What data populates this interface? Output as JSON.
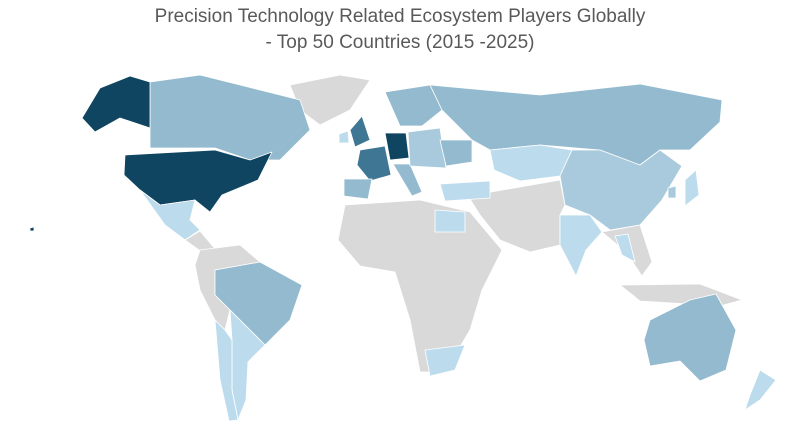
{
  "title": {
    "line1": "Precision Technology Related Ecosystem Players Globally",
    "line2": "- Top 50 Countries (2015 -2025)"
  },
  "chart_data": {
    "type": "choropleth",
    "title": "Precision Technology Related Ecosystem Players Globally - Top 50 Countries (2015 -2025)",
    "scale_note": "relative shading tier 0 (not in top 50) to 5 (highest)",
    "colors": {
      "0": "#d9d9d9",
      "1": "#bcdcee",
      "2": "#a9cadc",
      "3": "#93bace",
      "4": "#3f7693",
      "5": "#0f4560"
    },
    "countries": [
      {
        "name": "United States",
        "tier": 5
      },
      {
        "name": "Alaska (US)",
        "tier": 5
      },
      {
        "name": "Germany",
        "tier": 5
      },
      {
        "name": "United Kingdom",
        "tier": 4
      },
      {
        "name": "France",
        "tier": 4
      },
      {
        "name": "Canada",
        "tier": 3
      },
      {
        "name": "Russia",
        "tier": 3
      },
      {
        "name": "Brazil",
        "tier": 3
      },
      {
        "name": "Australia",
        "tier": 3
      },
      {
        "name": "Italy",
        "tier": 3
      },
      {
        "name": "Spain",
        "tier": 3
      },
      {
        "name": "Nordics",
        "tier": 3
      },
      {
        "name": "Ukraine",
        "tier": 3
      },
      {
        "name": "Poland & Central Europe",
        "tier": 2
      },
      {
        "name": "China",
        "tier": 2
      },
      {
        "name": "South Korea",
        "tier": 2
      },
      {
        "name": "Ireland",
        "tier": 1
      },
      {
        "name": "Mexico",
        "tier": 1
      },
      {
        "name": "Argentina",
        "tier": 1
      },
      {
        "name": "Chile",
        "tier": 1
      },
      {
        "name": "Kazakhstan",
        "tier": 1
      },
      {
        "name": "Turkey",
        "tier": 1
      },
      {
        "name": "India",
        "tier": 1
      },
      {
        "name": "Japan",
        "tier": 1
      },
      {
        "name": "Egypt",
        "tier": 1
      },
      {
        "name": "South Africa",
        "tier": 1
      },
      {
        "name": "Thailand & Vietnam",
        "tier": 1
      },
      {
        "name": "New Zealand",
        "tier": 1
      },
      {
        "name": "Greenland",
        "tier": 0
      },
      {
        "name": "Central America",
        "tier": 0
      },
      {
        "name": "Northern South America",
        "tier": 0
      },
      {
        "name": "Africa",
        "tier": 0
      },
      {
        "name": "Middle East & Central Asia",
        "tier": 0
      },
      {
        "name": "Southeast Asia",
        "tier": 0
      },
      {
        "name": "Indonesia & PNG",
        "tier": 0
      }
    ]
  }
}
